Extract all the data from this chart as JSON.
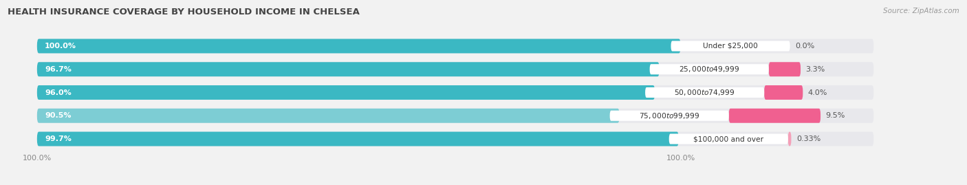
{
  "title": "HEALTH INSURANCE COVERAGE BY HOUSEHOLD INCOME IN CHELSEA",
  "source": "Source: ZipAtlas.com",
  "categories": [
    "Under $25,000",
    "$25,000 to $49,999",
    "$50,000 to $74,999",
    "$75,000 to $99,999",
    "$100,000 and over"
  ],
  "with_coverage": [
    100.0,
    96.7,
    96.0,
    90.5,
    99.7
  ],
  "without_coverage": [
    0.0,
    3.3,
    4.0,
    9.5,
    0.33
  ],
  "color_with": "#3BB8C3",
  "color_with_light": "#7DCDD4",
  "color_without": "#F06090",
  "color_without_light": "#F5A0B8",
  "color_bg_bar": "#E8E8EC",
  "background_color": "#F2F2F2",
  "title_fontsize": 9.5,
  "label_fontsize": 8.0,
  "tick_fontsize": 8.0,
  "source_fontsize": 7.5,
  "with_coverage_pct_labels": [
    "100.0%",
    "96.7%",
    "96.0%",
    "90.5%",
    "99.7%"
  ],
  "without_coverage_pct_labels": [
    "0.0%",
    "3.3%",
    "4.0%",
    "9.5%",
    "0.33%"
  ],
  "x_left_label": "100.0%",
  "x_right_label": "100.0%"
}
